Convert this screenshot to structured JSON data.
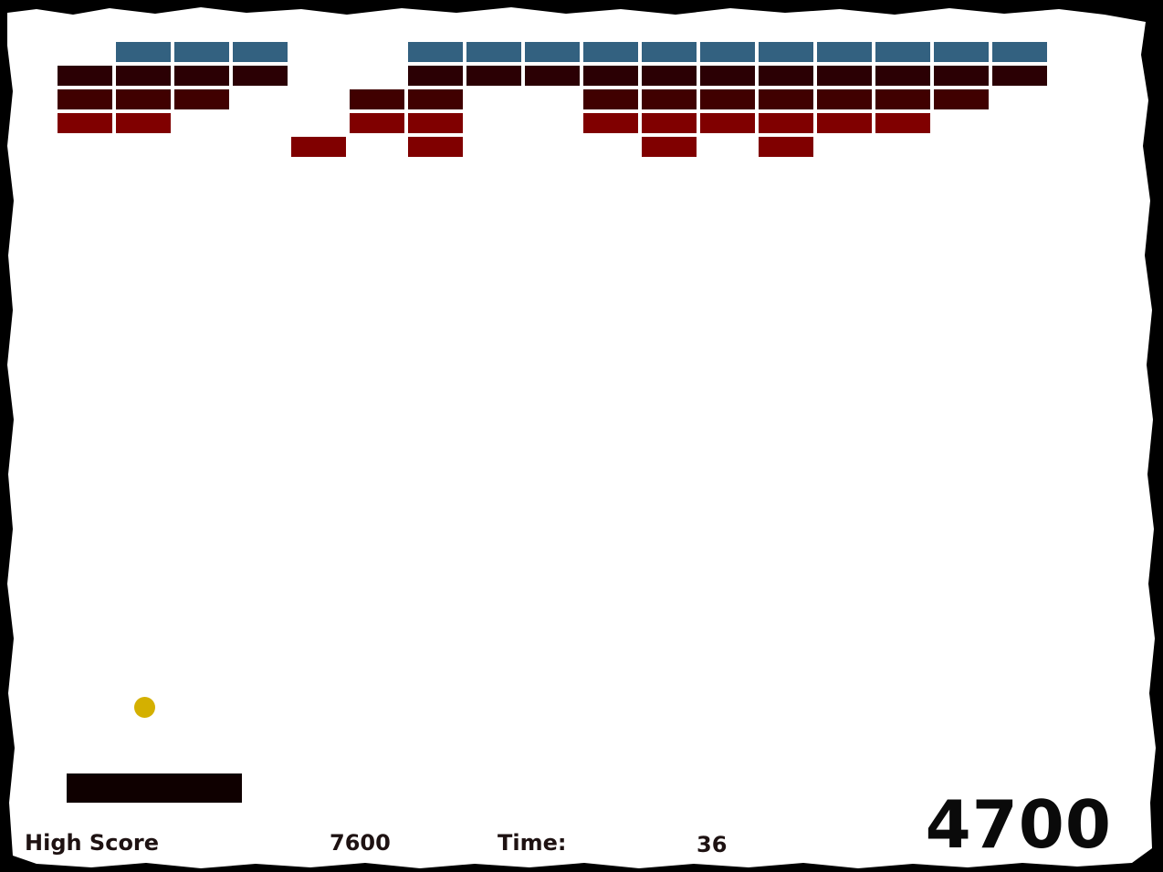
{
  "hud": {
    "high_score_label": "High Score",
    "high_score_value": "7600",
    "time_label": "Time:",
    "time_value": "36",
    "score_value": "4700"
  },
  "colors": {
    "background": "#ffffff",
    "border": "#000000",
    "brick_blue": "#336180",
    "brick_dark": "#2b0004",
    "brick_maroon": "#400000",
    "brick_red": "#800000",
    "paddle": "#0f0000",
    "ball": "#d4b000",
    "text": "#1e1212"
  },
  "bricks": [
    {
      "type": "blue",
      "cells": [
        0,
        0,
        1,
        1,
        1,
        0,
        0,
        1,
        1,
        1,
        1,
        1,
        1,
        1,
        1,
        1,
        1,
        1
      ]
    },
    {
      "type": "dark",
      "cells": [
        0,
        1,
        1,
        1,
        1,
        0,
        0,
        1,
        1,
        1,
        1,
        1,
        1,
        1,
        1,
        1,
        1,
        1
      ]
    },
    {
      "type": "maroon",
      "cells": [
        0,
        1,
        1,
        1,
        0,
        0,
        1,
        1,
        0,
        0,
        1,
        1,
        1,
        1,
        1,
        1,
        1,
        0
      ]
    },
    {
      "type": "red",
      "cells": [
        0,
        1,
        1,
        0,
        0,
        0,
        1,
        1,
        0,
        0,
        1,
        1,
        1,
        1,
        1,
        1,
        0,
        0
      ]
    },
    {
      "type": "red",
      "cells": [
        0,
        0,
        0,
        0,
        0,
        1,
        0,
        1,
        0,
        0,
        0,
        1,
        0,
        1,
        0,
        0,
        0,
        0
      ]
    }
  ]
}
